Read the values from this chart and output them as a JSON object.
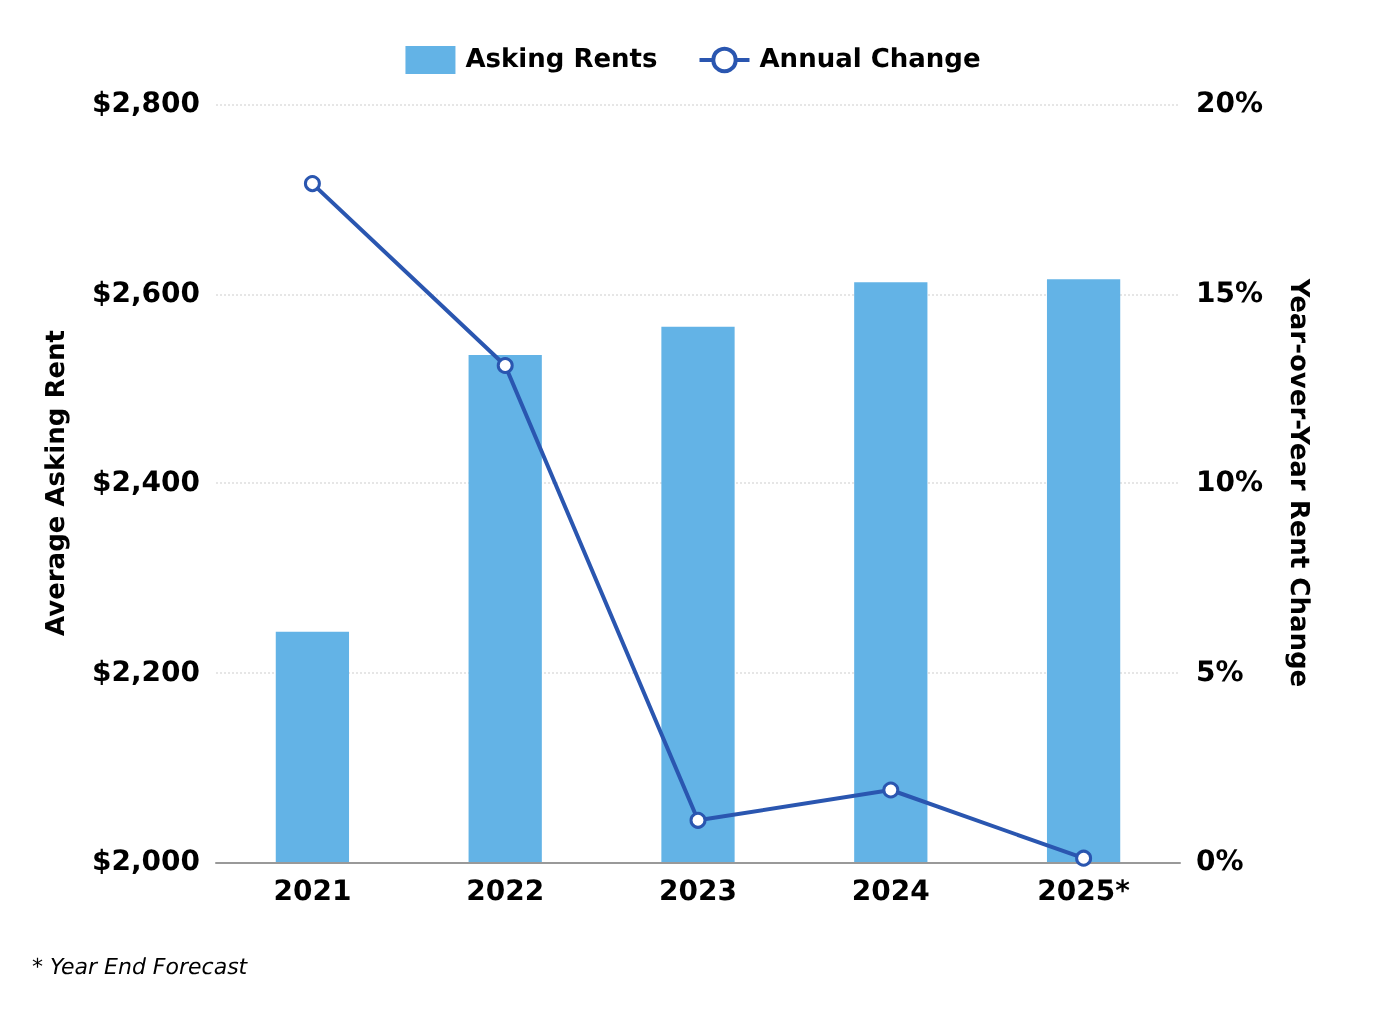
{
  "chart_data": {
    "type": "bar",
    "ylabel": "Average Asking Rent",
    "y2label": "Year-over-Year Rent Change",
    "categories": [
      "2021",
      "2022",
      "2023",
      "2024",
      "2025*"
    ],
    "series": [
      {
        "name": "Asking Rents",
        "color": "#63b3e6",
        "values": [
          2243,
          2535,
          2565,
          2612,
          2615
        ]
      },
      {
        "name": "Annual Change",
        "type": "line",
        "axis": "y2",
        "color": "#2a56b0",
        "values": [
          17.9,
          13.1,
          1.1,
          1.9,
          0.1
        ]
      }
    ],
    "ylim": [
      2000,
      2800
    ],
    "yticks": [
      {
        "value": 2000,
        "label": "$2,000"
      },
      {
        "value": 2200,
        "label": "$2,200"
      },
      {
        "value": 2400,
        "label": "$2,400"
      },
      {
        "value": 2600,
        "label": "$2,600"
      },
      {
        "value": 2800,
        "label": "$2,800"
      }
    ],
    "y2lim": [
      0,
      20
    ],
    "y2ticks": [
      {
        "value": 0,
        "label": "0%"
      },
      {
        "value": 5,
        "label": "5%"
      },
      {
        "value": 10,
        "label": "10%"
      },
      {
        "value": 15,
        "label": "15%"
      },
      {
        "value": 20,
        "label": "20%"
      }
    ],
    "grid": "y",
    "legend": "top",
    "marker": "circle",
    "line_style": "solid",
    "annotations": [
      "* Year End Forecast"
    ]
  }
}
